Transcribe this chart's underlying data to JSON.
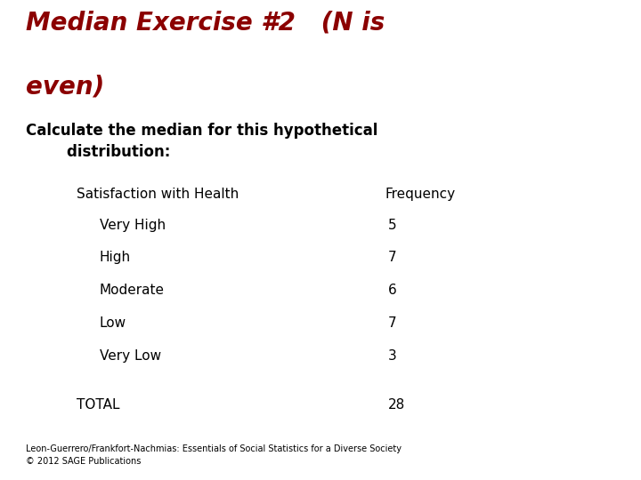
{
  "title_line1": "Median Exercise #2   (N is",
  "title_line2": "even)",
  "title_color": "#8B0000",
  "subtitle_line1": "Calculate the median for this hypothetical",
  "subtitle_line2": "        distribution:",
  "subtitle_color": "#000000",
  "col1_header": "Satisfaction with Health",
  "col2_header": "Frequency",
  "rows": [
    [
      "Very High",
      "5"
    ],
    [
      "High",
      "7"
    ],
    [
      "Moderate",
      "6"
    ],
    [
      "Low",
      "7"
    ],
    [
      "Very Low",
      "3"
    ]
  ],
  "total_label": "TOTAL",
  "total_value": "28",
  "footer_line1": "Leon-Guerrero/Frankfort-Nachmias: Essentials of Social Statistics for a Diverse Society",
  "footer_line2": "© 2012 SAGE Publications",
  "bg_color": "#ffffff",
  "bar_color_dark": "#111111",
  "bar_color_red": "#8B0000",
  "title_fontsize": 20,
  "subtitle_fontsize": 12,
  "table_fontsize": 11,
  "footer_fontsize": 7
}
